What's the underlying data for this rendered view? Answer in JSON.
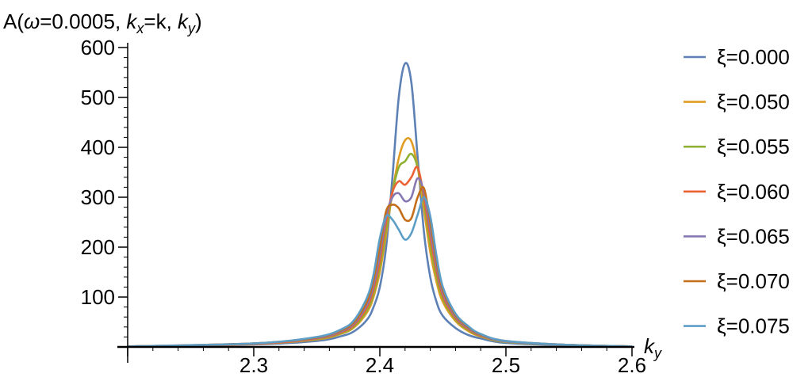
{
  "chart_data": {
    "type": "line",
    "title": "A(ω=0.0005, kx=k, ky)",
    "title_parts": {
      "prefix": "A(",
      "omega": "ω",
      "omega_val": "=0.0005, ",
      "k1": "k",
      "k1_sub": "x",
      "k1_eq": "=k, ",
      "k2": "k",
      "k2_sub": "y",
      "suffix": ")"
    },
    "xlabel": "k",
    "xlabel_sub": "y",
    "ylabel": "",
    "xlim": [
      2.2,
      2.6
    ],
    "ylim": [
      0,
      600
    ],
    "x_ticks": [
      {
        "value": 2.3,
        "label": "2.3"
      },
      {
        "value": 2.4,
        "label": "2.4"
      },
      {
        "value": 2.5,
        "label": "2.5"
      },
      {
        "value": 2.6,
        "label": "2.6"
      }
    ],
    "y_ticks": [
      {
        "value": 100,
        "label": "100"
      },
      {
        "value": 200,
        "label": "200"
      },
      {
        "value": 300,
        "label": "300"
      },
      {
        "value": 400,
        "label": "400"
      },
      {
        "value": 500,
        "label": "500"
      },
      {
        "value": 600,
        "label": "600"
      }
    ],
    "grid": false,
    "legend_position": "right",
    "x": [
      2.2,
      2.3,
      2.35,
      2.37,
      2.38,
      2.39,
      2.395,
      2.4,
      2.405,
      2.41,
      2.415,
      2.42,
      2.425,
      2.43,
      2.435,
      2.44,
      2.445,
      2.45,
      2.46,
      2.47,
      2.48,
      2.5,
      2.55,
      2.6
    ],
    "series": [
      {
        "name": "ξ=0.000",
        "color": "#5e81b5",
        "values": [
          1,
          5,
          12,
          22,
          32,
          55,
          80,
          120,
          200,
          340,
          500,
          568,
          530,
          380,
          230,
          140,
          90,
          62,
          38,
          24,
          17,
          8,
          3,
          1
        ]
      },
      {
        "name": "ξ=0.050",
        "color": "#e19c24",
        "values": [
          1,
          6,
          15,
          27,
          40,
          70,
          100,
          150,
          225,
          310,
          378,
          414,
          412,
          360,
          275,
          190,
          130,
          90,
          52,
          32,
          21,
          10,
          4,
          1
        ]
      },
      {
        "name": "ξ=0.055",
        "color": "#8fb032",
        "values": [
          1,
          6,
          16,
          28,
          42,
          74,
          106,
          160,
          235,
          310,
          360,
          372,
          387,
          360,
          290,
          205,
          140,
          96,
          55,
          34,
          22,
          10,
          4,
          1
        ]
      },
      {
        "name": "ξ=0.060",
        "color": "#eb6235",
        "values": [
          1,
          6,
          17,
          30,
          45,
          80,
          115,
          172,
          250,
          310,
          332,
          325,
          340,
          360,
          300,
          220,
          152,
          102,
          58,
          36,
          23,
          11,
          4,
          1
        ]
      },
      {
        "name": "ξ=0.065",
        "color": "#8778b3",
        "values": [
          1,
          7,
          18,
          32,
          48,
          86,
          124,
          185,
          262,
          300,
          308,
          292,
          300,
          338,
          310,
          235,
          162,
          108,
          61,
          38,
          24,
          11,
          4,
          1
        ]
      },
      {
        "name": "ξ=0.070",
        "color": "#c56e1a",
        "values": [
          1,
          7,
          19,
          34,
          51,
          92,
          134,
          200,
          272,
          285,
          278,
          255,
          258,
          300,
          318,
          250,
          172,
          114,
          64,
          40,
          25,
          12,
          4,
          1
        ]
      },
      {
        "name": "ξ=0.075",
        "color": "#5d9ec7",
        "values": [
          1,
          7,
          20,
          36,
          55,
          100,
          145,
          218,
          262,
          255,
          235,
          215,
          228,
          265,
          300,
          262,
          182,
          120,
          67,
          42,
          26,
          12,
          4,
          1
        ]
      }
    ]
  }
}
